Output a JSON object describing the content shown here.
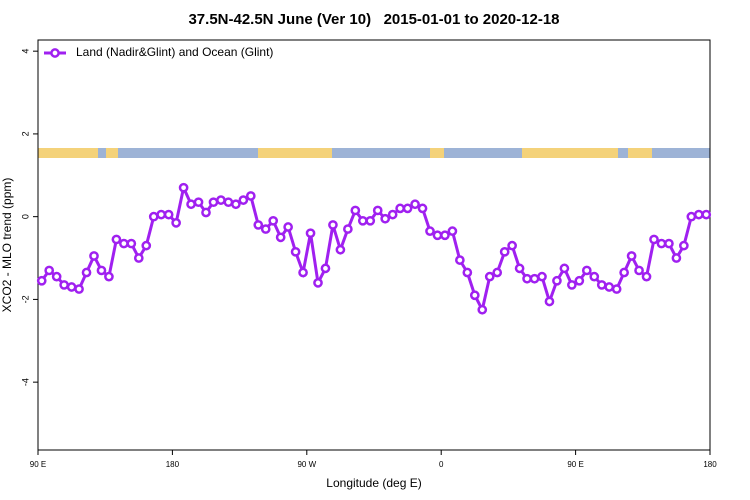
{
  "chart_data": {
    "type": "line",
    "title": "37.5N-42.5N June (Ver 10)   2015-01-01 to 2020-12-18",
    "x_label": "Longitude (deg E)",
    "y_label": "XCO2 - MLO trend (ppm)",
    "x": [
      92.5,
      97.5,
      102.5,
      107.5,
      112.5,
      117.5,
      122.5,
      127.5,
      132.5,
      137.5,
      142.5,
      147.5,
      152.5,
      157.5,
      162.5,
      167.5,
      172.5,
      177.5,
      182.5,
      187.5,
      192.5,
      197.5,
      202.5,
      207.5,
      212.5,
      217.5,
      222.5,
      227.5,
      232.5,
      237.5,
      242.5,
      247.5,
      252.5,
      257.5,
      262.5,
      267.5,
      272.5,
      277.5,
      282.5,
      287.5,
      292.5,
      297.5,
      302.5,
      307.5,
      312.5,
      317.5,
      322.5,
      327.5,
      332.5,
      337.5,
      342.5,
      347.5,
      352.5,
      357.5,
      362.5,
      367.5,
      372.5,
      377.5,
      382.5,
      387.5,
      392.5,
      397.5,
      402.5,
      407.5,
      412.5,
      417.5,
      422.5,
      427.5,
      432.5,
      437.5,
      442.5,
      447.5,
      452.5,
      457.5,
      462.5,
      467.5,
      472.5,
      477.5,
      482.5,
      487.5,
      492.5,
      497.5,
      502.5,
      507.5,
      512.5,
      517.5,
      522.5,
      527.5,
      532.5,
      537.5
    ],
    "series": [
      {
        "name": "Land (Nadir&Glint) and Ocean (Glint)",
        "color": "#a020f0",
        "values": [
          -1.55,
          -1.3,
          -1.45,
          -1.65,
          -1.7,
          -1.75,
          -1.35,
          -0.95,
          -1.3,
          -1.45,
          -0.55,
          -0.65,
          -0.65,
          -1.0,
          -0.7,
          0.0,
          0.05,
          0.05,
          -0.15,
          0.7,
          0.3,
          0.35,
          0.1,
          0.35,
          0.4,
          0.35,
          0.3,
          0.4,
          0.5,
          -0.2,
          -0.3,
          -0.1,
          -0.5,
          -0.25,
          -0.85,
          -1.35,
          -0.4,
          -1.6,
          -1.25,
          -0.2,
          -0.8,
          -0.3,
          0.15,
          -0.1,
          -0.1,
          0.15,
          -0.05,
          0.05,
          0.2,
          0.2,
          0.3,
          0.2,
          -0.35,
          -0.45,
          -0.45,
          -0.35,
          -1.05,
          -1.35,
          -1.9,
          -2.25,
          -1.45,
          -1.35,
          -0.85,
          -0.7,
          -1.25,
          -1.5,
          -1.5,
          -1.45,
          -2.05,
          -1.55,
          -1.25,
          -1.65,
          -1.55,
          -1.3,
          -1.45,
          -1.65,
          -1.7,
          -1.75,
          -1.35,
          -0.95,
          -1.3,
          -1.45,
          -0.55,
          -0.65,
          -0.65,
          -1.0,
          -0.7,
          0.0,
          0.05,
          0.05
        ]
      }
    ],
    "xlim": [
      90,
      540
    ],
    "xticks": [
      {
        "value": 90,
        "label": "90 E"
      },
      180,
      {
        "value": 270,
        "label": "90 W"
      },
      {
        "value": 360,
        "label": "0"
      },
      {
        "value": 450,
        "label": "90 E"
      },
      {
        "value": 540,
        "label": "180"
      }
    ],
    "ylim": [
      -5.64,
      4.27
    ],
    "yticks": [
      -4,
      -2,
      0,
      2,
      4
    ],
    "legend": "top-left",
    "grid": false
  }
}
